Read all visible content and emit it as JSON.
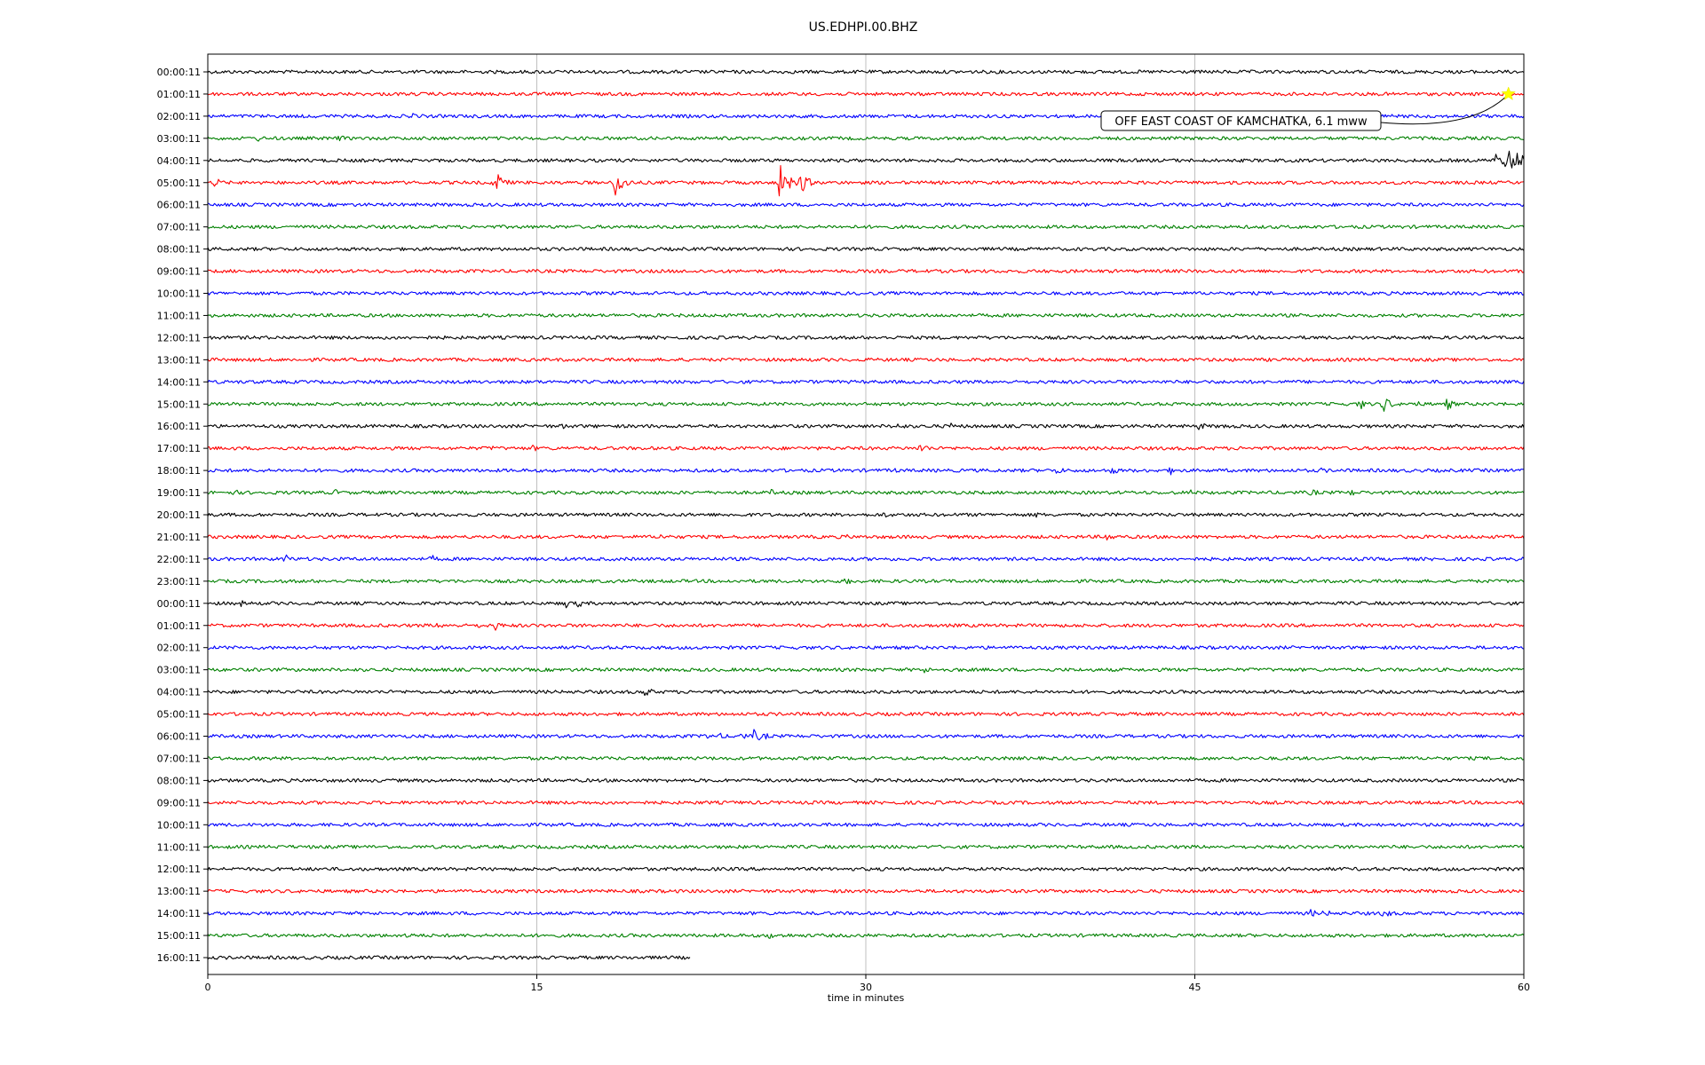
{
  "chart_data": {
    "type": "line",
    "title": "US.EDHPI.00.BHZ",
    "xlabel": "time in minutes",
    "ylabel": "",
    "xlim": [
      0,
      60
    ],
    "x_ticks": [
      0,
      15,
      30,
      45,
      60
    ],
    "grid": "vertical",
    "trace_colors": [
      "#000000",
      "#ff0000",
      "#0000ff",
      "#008000"
    ],
    "rows": [
      {
        "label": "00:00:11",
        "end": 60,
        "events": []
      },
      {
        "label": "01:00:11",
        "end": 60,
        "events": []
      },
      {
        "label": "02:00:11",
        "end": 60,
        "events": [
          [
            9.3,
            5
          ]
        ]
      },
      {
        "label": "03:00:11",
        "end": 60,
        "events": [
          [
            2.3,
            4
          ],
          [
            6.0,
            4
          ]
        ]
      },
      {
        "label": "04:00:11",
        "end": 60,
        "events": [
          [
            58.7,
            10
          ],
          [
            59.2,
            18
          ],
          [
            59.6,
            14
          ]
        ]
      },
      {
        "label": "05:00:11",
        "end": 60,
        "events": [
          [
            0.3,
            6
          ],
          [
            13.1,
            14
          ],
          [
            18.6,
            18
          ],
          [
            26.1,
            22
          ],
          [
            27.0,
            14
          ]
        ]
      },
      {
        "label": "06:00:11",
        "end": 60,
        "events": []
      },
      {
        "label": "07:00:11",
        "end": 60,
        "events": []
      },
      {
        "label": "08:00:11",
        "end": 60,
        "events": []
      },
      {
        "label": "09:00:11",
        "end": 60,
        "events": []
      },
      {
        "label": "10:00:11",
        "end": 60,
        "events": []
      },
      {
        "label": "11:00:11",
        "end": 60,
        "events": []
      },
      {
        "label": "12:00:11",
        "end": 60,
        "events": []
      },
      {
        "label": "13:00:11",
        "end": 60,
        "events": []
      },
      {
        "label": "14:00:11",
        "end": 60,
        "events": []
      },
      {
        "label": "15:00:11",
        "end": 60,
        "events": [
          [
            52.5,
            7
          ],
          [
            53.6,
            10
          ],
          [
            55.0,
            5
          ],
          [
            56.5,
            7
          ]
        ]
      },
      {
        "label": "16:00:11",
        "end": 60,
        "events": [
          [
            16.2,
            4
          ],
          [
            31.5,
            5
          ],
          [
            33.8,
            5
          ],
          [
            45.2,
            5
          ],
          [
            46.3,
            4
          ]
        ]
      },
      {
        "label": "17:00:11",
        "end": 60,
        "events": [
          [
            12.9,
            4
          ],
          [
            14.8,
            4
          ],
          [
            32.5,
            7
          ],
          [
            47.0,
            3
          ]
        ]
      },
      {
        "label": "18:00:11",
        "end": 60,
        "events": [
          [
            31.2,
            4
          ],
          [
            38.7,
            5
          ],
          [
            41.2,
            5
          ],
          [
            43.9,
            5
          ],
          [
            50.8,
            4
          ]
        ]
      },
      {
        "label": "19:00:11",
        "end": 60,
        "events": [
          [
            1.2,
            4
          ],
          [
            5.8,
            4
          ],
          [
            25.7,
            4
          ],
          [
            44.8,
            4
          ],
          [
            50.3,
            5
          ],
          [
            52.1,
            5
          ]
        ]
      },
      {
        "label": "20:00:11",
        "end": 60,
        "events": [
          [
            30.8,
            4
          ],
          [
            37.7,
            4
          ]
        ]
      },
      {
        "label": "21:00:11",
        "end": 60,
        "events": [
          [
            20.7,
            5
          ],
          [
            29.0,
            4
          ],
          [
            41.0,
            6
          ]
        ]
      },
      {
        "label": "22:00:11",
        "end": 60,
        "events": [
          [
            3.5,
            6
          ],
          [
            10.2,
            5
          ]
        ]
      },
      {
        "label": "23:00:11",
        "end": 60,
        "events": [
          [
            29.1,
            5
          ]
        ]
      },
      {
        "label": "00:00:11",
        "end": 60,
        "events": [
          [
            1.5,
            4
          ],
          [
            16.3,
            6
          ],
          [
            16.9,
            5
          ]
        ]
      },
      {
        "label": "01:00:11",
        "end": 60,
        "events": [
          [
            10.5,
            4
          ],
          [
            12.4,
            4
          ],
          [
            13.1,
            6
          ]
        ]
      },
      {
        "label": "02:00:11",
        "end": 60,
        "events": []
      },
      {
        "label": "03:00:11",
        "end": 60,
        "events": [
          [
            32.6,
            5
          ],
          [
            34.0,
            4
          ]
        ]
      },
      {
        "label": "04:00:11",
        "end": 60,
        "events": [
          [
            19.9,
            7
          ]
        ]
      },
      {
        "label": "05:00:11",
        "end": 60,
        "events": []
      },
      {
        "label": "06:00:11",
        "end": 60,
        "events": [
          [
            22.6,
            5
          ],
          [
            23.4,
            4
          ],
          [
            24.3,
            5
          ],
          [
            24.9,
            8
          ],
          [
            25.4,
            4
          ]
        ]
      },
      {
        "label": "07:00:11",
        "end": 60,
        "events": []
      },
      {
        "label": "08:00:11",
        "end": 60,
        "events": []
      },
      {
        "label": "09:00:11",
        "end": 60,
        "events": []
      },
      {
        "label": "10:00:11",
        "end": 60,
        "events": []
      },
      {
        "label": "11:00:11",
        "end": 60,
        "events": []
      },
      {
        "label": "12:00:11",
        "end": 60,
        "events": []
      },
      {
        "label": "13:00:11",
        "end": 60,
        "events": []
      },
      {
        "label": "14:00:11",
        "end": 60,
        "events": [
          [
            50.2,
            6
          ],
          [
            50.9,
            5
          ],
          [
            53.6,
            7
          ]
        ]
      },
      {
        "label": "15:00:11",
        "end": 60,
        "events": [
          [
            9.1,
            5
          ],
          [
            25.5,
            5
          ],
          [
            26.3,
            4
          ]
        ]
      },
      {
        "label": "16:00:11",
        "end": 22,
        "events": []
      }
    ],
    "annotation": {
      "text": "OFF EAST COAST OF KAMCHATKA, 6.1 mww",
      "row": 1,
      "minute": 59.3,
      "marker_color": "#ffff00"
    }
  }
}
